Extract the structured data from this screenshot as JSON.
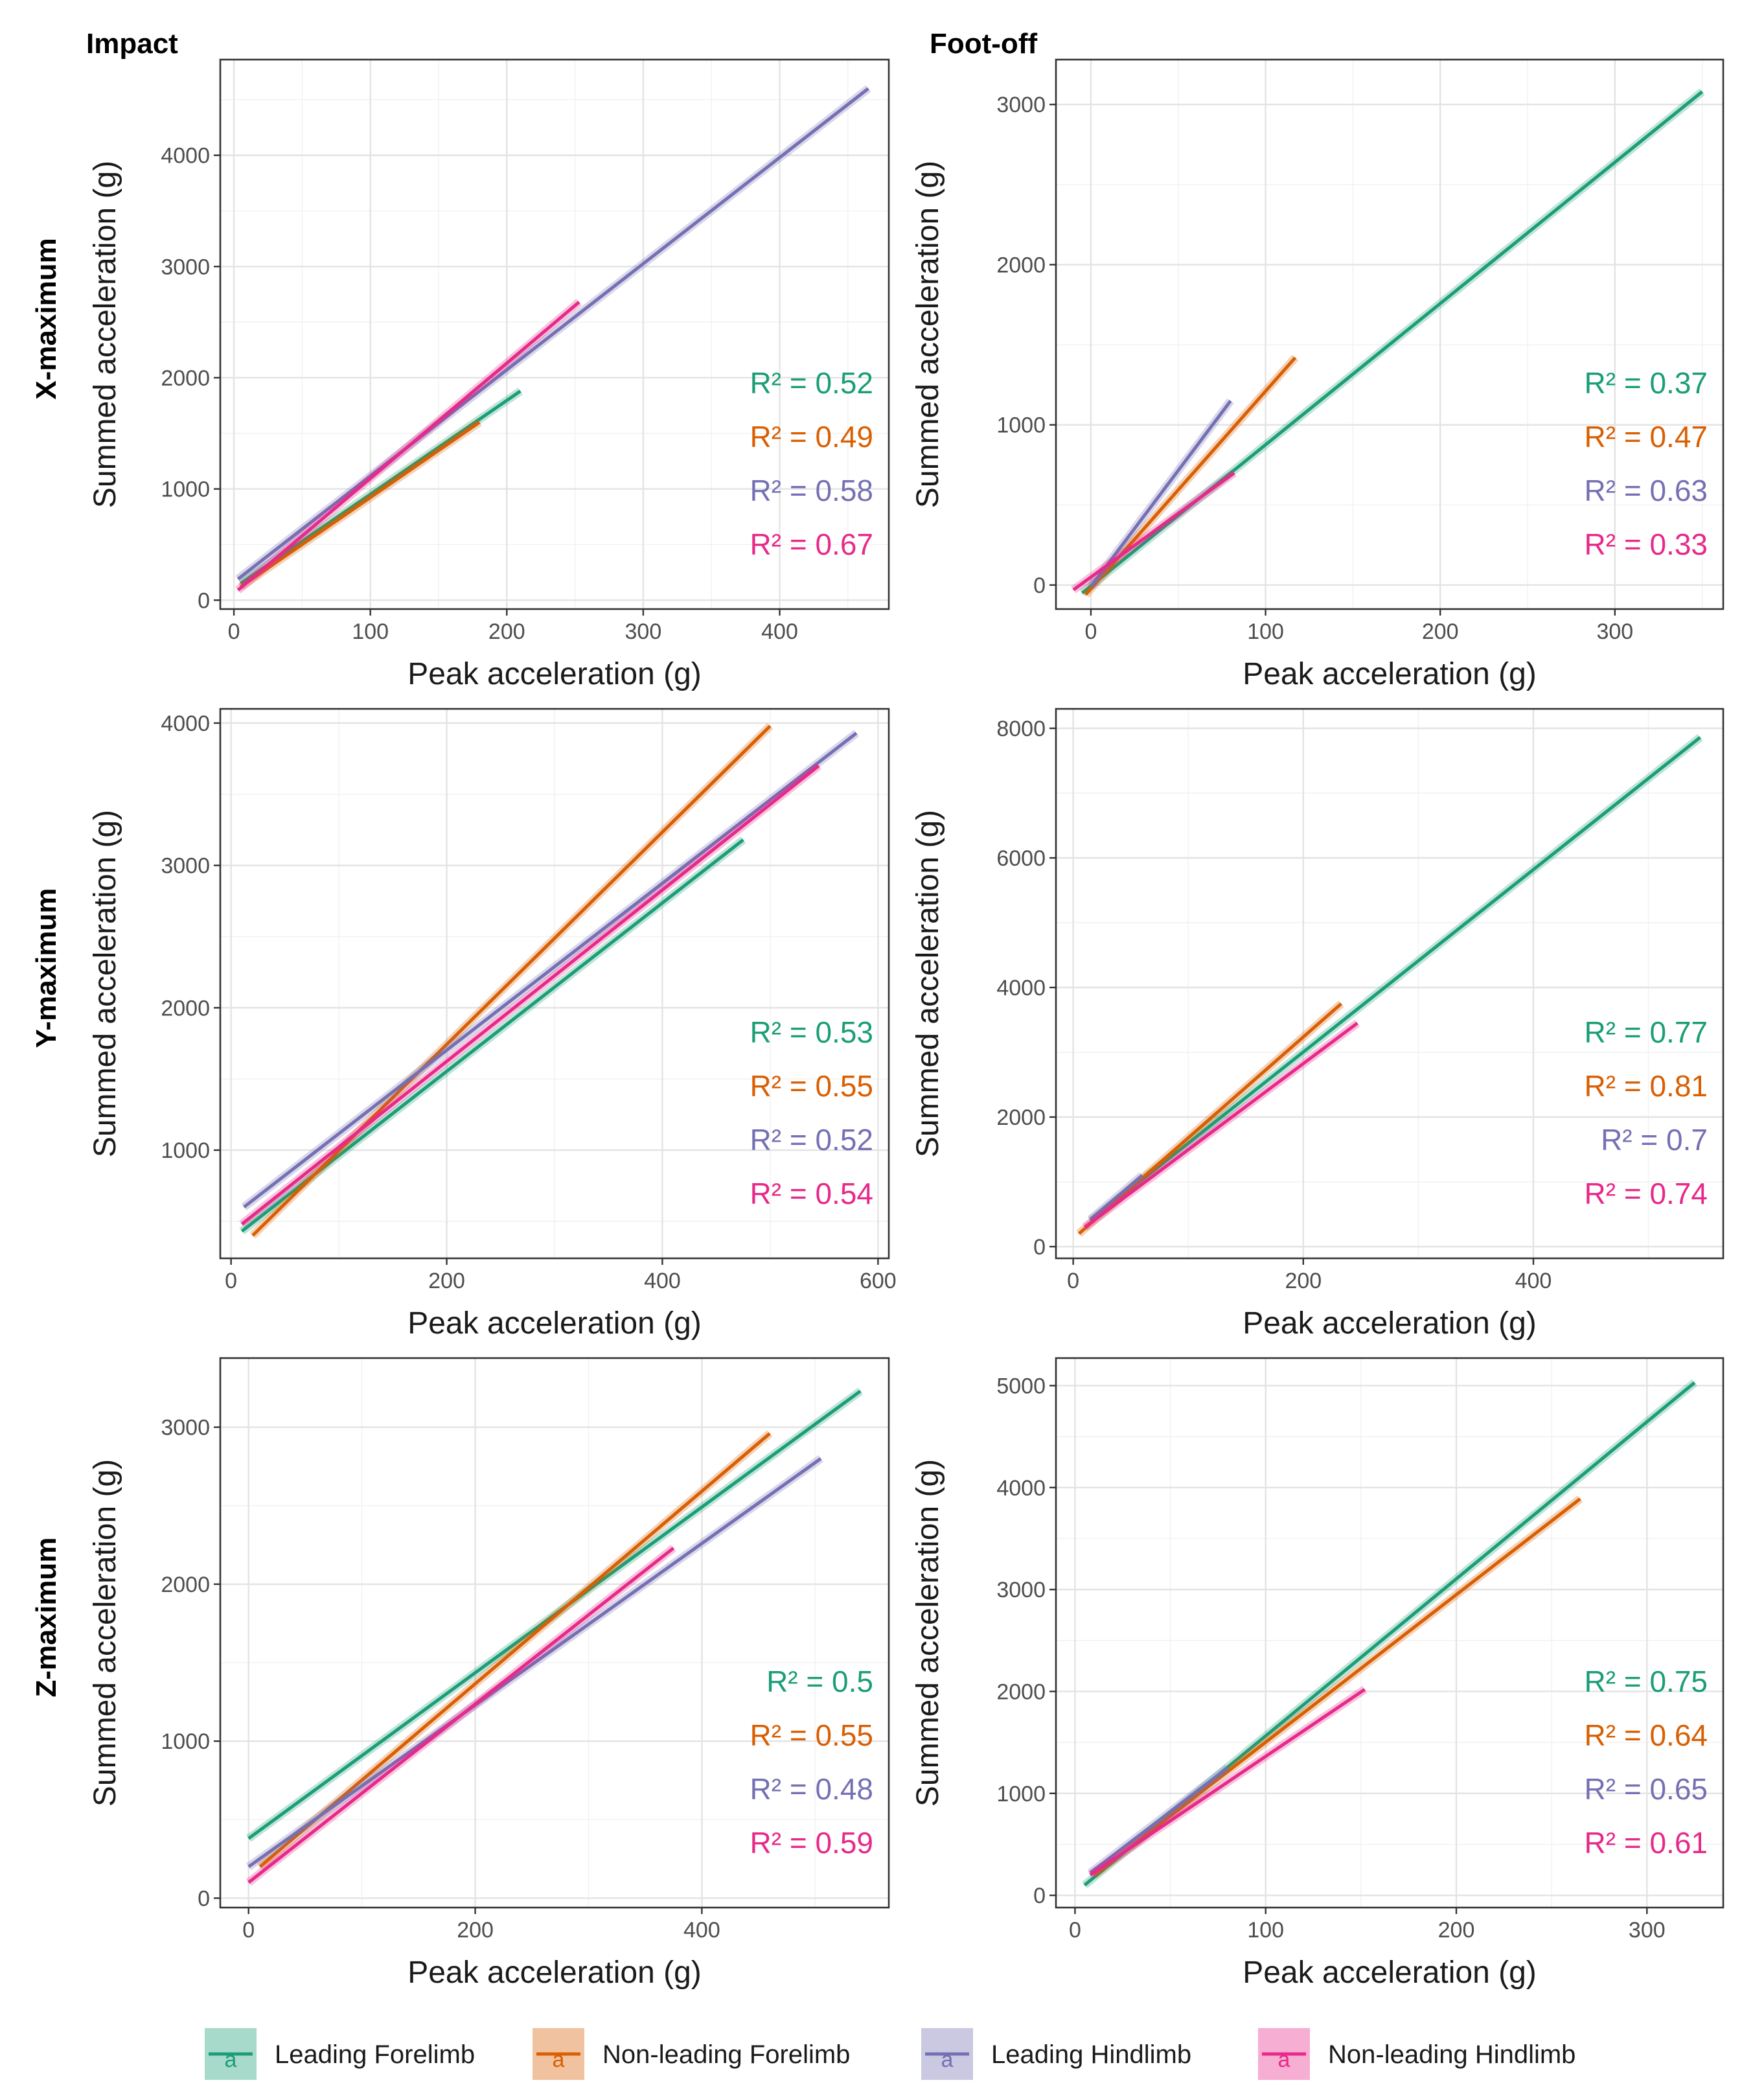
{
  "legend": {
    "items": [
      {
        "label": "Leading Forelimb",
        "color": "#1b9e77",
        "key_glyph": "a"
      },
      {
        "label": "Non-leading Forelimb",
        "color": "#d95f02",
        "key_glyph": "a"
      },
      {
        "label": "Leading Hindlimb",
        "color": "#7570b3",
        "key_glyph": "a"
      },
      {
        "label": "Non-leading Hindlimb",
        "color": "#e7298a",
        "key_glyph": "a"
      }
    ]
  },
  "columns": [
    "Impact",
    "Foot-off"
  ],
  "rows": [
    "X-maximum",
    "Y-maximum",
    "Z-maximum"
  ],
  "chart_data": [
    {
      "type": "line",
      "title": "Impact",
      "row": "X-maximum",
      "xlabel": "Peak acceleration (g)",
      "ylabel": "Summed acceleration (g)",
      "xlim": [
        -10,
        480
      ],
      "ylim": [
        -80,
        4860
      ],
      "xticks": [
        0,
        100,
        200,
        300,
        400
      ],
      "yticks": [
        0,
        1000,
        2000,
        3000,
        4000
      ],
      "series": [
        {
          "name": "Leading Forelimb",
          "x": [
            5,
            210
          ],
          "y": [
            150,
            1880
          ]
        },
        {
          "name": "Non-leading Forelimb",
          "x": [
            5,
            180
          ],
          "y": [
            120,
            1600
          ]
        },
        {
          "name": "Leading Hindlimb",
          "x": [
            3,
            465
          ],
          "y": [
            190,
            4600
          ]
        },
        {
          "name": "Non-leading Hindlimb",
          "x": [
            3,
            253
          ],
          "y": [
            90,
            2680
          ]
        }
      ],
      "annotations": [
        "R² = 0.52",
        "R² = 0.49",
        "R² = 0.58",
        "R² = 0.67"
      ]
    },
    {
      "type": "line",
      "title": "Foot-off",
      "row": "X-maximum",
      "xlabel": "Peak acceleration (g)",
      "ylabel": "Summed acceleration (g)",
      "xlim": [
        -20,
        362
      ],
      "ylim": [
        -150,
        3280
      ],
      "xticks": [
        0,
        100,
        200,
        300
      ],
      "yticks": [
        0,
        1000,
        2000,
        3000
      ],
      "series": [
        {
          "name": "Leading Forelimb",
          "x": [
            -5,
            350
          ],
          "y": [
            -50,
            3080
          ]
        },
        {
          "name": "Non-leading Forelimb",
          "x": [
            -3,
            117
          ],
          "y": [
            -60,
            1420
          ]
        },
        {
          "name": "Leading Hindlimb",
          "x": [
            0,
            80
          ],
          "y": [
            -10,
            1150
          ]
        },
        {
          "name": "Non-leading Hindlimb",
          "x": [
            -10,
            82
          ],
          "y": [
            -30,
            700
          ]
        }
      ],
      "annotations": [
        "R² = 0.37",
        "R² = 0.47",
        "R² = 0.63",
        "R² = 0.33"
      ]
    },
    {
      "type": "line",
      "title": "Impact",
      "row": "Y-maximum",
      "xlabel": "Peak acceleration (g)",
      "ylabel": "Summed acceleration (g)",
      "xlim": [
        -10,
        610
      ],
      "ylim": [
        240,
        4100
      ],
      "xticks": [
        0,
        200,
        400,
        600
      ],
      "yticks": [
        1000,
        2000,
        3000,
        4000
      ],
      "series": [
        {
          "name": "Leading Forelimb",
          "x": [
            10,
            475
          ],
          "y": [
            430,
            3180
          ]
        },
        {
          "name": "Non-leading Forelimb",
          "x": [
            20,
            500
          ],
          "y": [
            400,
            3980
          ]
        },
        {
          "name": "Leading Hindlimb",
          "x": [
            12,
            580
          ],
          "y": [
            600,
            3930
          ]
        },
        {
          "name": "Non-leading Hindlimb",
          "x": [
            10,
            545
          ],
          "y": [
            480,
            3700
          ]
        }
      ],
      "annotations": [
        "R² = 0.53",
        "R² = 0.55",
        "R² = 0.52",
        "R² = 0.54"
      ]
    },
    {
      "type": "line",
      "title": "Foot-off",
      "row": "Y-maximum",
      "xlabel": "Peak acceleration (g)",
      "ylabel": "Summed acceleration (g)",
      "xlim": [
        -15,
        565
      ],
      "ylim": [
        -180,
        8300
      ],
      "xticks": [
        0,
        200,
        400
      ],
      "yticks": [
        0,
        2000,
        4000,
        6000,
        8000
      ],
      "series": [
        {
          "name": "Leading Forelimb",
          "x": [
            15,
            545
          ],
          "y": [
            400,
            7860
          ]
        },
        {
          "name": "Non-leading Forelimb",
          "x": [
            5,
            233
          ],
          "y": [
            200,
            3750
          ]
        },
        {
          "name": "Leading Hindlimb",
          "x": [
            15,
            60
          ],
          "y": [
            420,
            1100
          ]
        },
        {
          "name": "Non-leading Hindlimb",
          "x": [
            10,
            247
          ],
          "y": [
            300,
            3450
          ]
        }
      ],
      "annotations": [
        "R² = 0.77",
        "R² = 0.81",
        "R² = 0.7",
        "R² = 0.74"
      ]
    },
    {
      "type": "line",
      "title": "Impact",
      "row": "Z-maximum",
      "xlabel": "Peak acceleration (g)",
      "ylabel": "Summed acceleration (g)",
      "xlim": [
        -25,
        565
      ],
      "ylim": [
        -60,
        3440
      ],
      "xticks": [
        0,
        200,
        400
      ],
      "yticks": [
        0,
        1000,
        2000,
        3000
      ],
      "series": [
        {
          "name": "Leading Forelimb",
          "x": [
            0,
            540
          ],
          "y": [
            380,
            3230
          ]
        },
        {
          "name": "Non-leading Forelimb",
          "x": [
            10,
            460
          ],
          "y": [
            200,
            2960
          ]
        },
        {
          "name": "Leading Hindlimb",
          "x": [
            0,
            505
          ],
          "y": [
            200,
            2800
          ]
        },
        {
          "name": "Non-leading Hindlimb",
          "x": [
            0,
            375
          ],
          "y": [
            100,
            2230
          ]
        }
      ],
      "annotations": [
        "R² = 0.5",
        "R² = 0.55",
        "R² = 0.48",
        "R² = 0.59"
      ]
    },
    {
      "type": "line",
      "title": "Foot-off",
      "row": "Z-maximum",
      "xlabel": "Peak acceleration (g)",
      "ylabel": "Summed acceleration (g)",
      "xlim": [
        -10,
        340
      ],
      "ylim": [
        -120,
        5270
      ],
      "xticks": [
        0,
        100,
        200,
        300
      ],
      "yticks": [
        0,
        1000,
        2000,
        3000,
        4000,
        5000
      ],
      "series": [
        {
          "name": "Leading Forelimb",
          "x": [
            5,
            325
          ],
          "y": [
            100,
            5030
          ]
        },
        {
          "name": "Non-leading Forelimb",
          "x": [
            10,
            265
          ],
          "y": [
            200,
            3890
          ]
        },
        {
          "name": "Leading Hindlimb",
          "x": [
            8,
            80
          ],
          "y": [
            220,
            1250
          ]
        },
        {
          "name": "Non-leading Hindlimb",
          "x": [
            8,
            152
          ],
          "y": [
            200,
            2020
          ]
        }
      ],
      "annotations": [
        "R² = 0.75",
        "R² = 0.64",
        "R² = 0.65",
        "R² = 0.61"
      ]
    }
  ]
}
